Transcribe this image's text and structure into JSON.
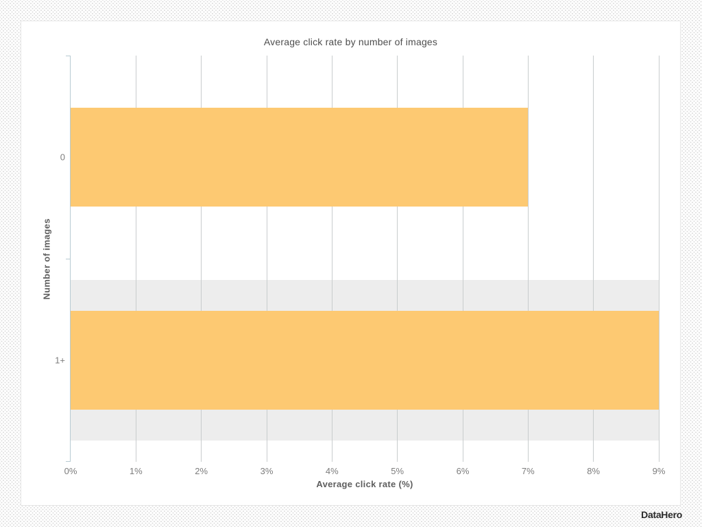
{
  "chart_data": {
    "type": "bar",
    "orientation": "horizontal",
    "title": "Average click rate by number of images",
    "xlabel": "Average click rate (%)",
    "ylabel": "Number of images",
    "categories": [
      "0",
      "1+"
    ],
    "values": [
      7,
      9
    ],
    "xlim": [
      0,
      9
    ],
    "x_ticks": [
      0,
      1,
      2,
      3,
      4,
      5,
      6,
      7,
      8,
      9
    ],
    "x_tick_labels": [
      "0%",
      "1%",
      "2%",
      "3%",
      "4%",
      "5%",
      "6%",
      "7%",
      "8%",
      "9%"
    ],
    "grid": "vertical-on",
    "legend": "none",
    "highlighted_row_index": 1,
    "colors": {
      "bar": "#FDC972",
      "row_highlight": "#EDEDED",
      "gridline": "#C8CCCD",
      "axis_line": "#B7CAD2"
    }
  },
  "branding": {
    "logo_text": "DataHero"
  }
}
